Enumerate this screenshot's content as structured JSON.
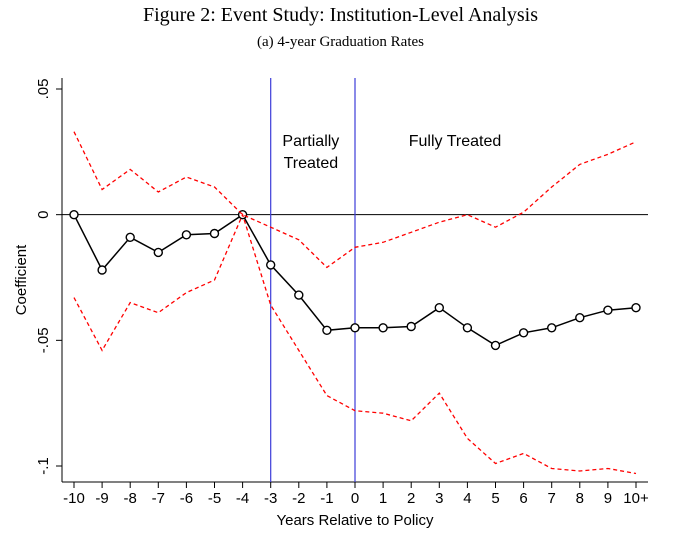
{
  "title": "Figure 2: Event Study: Institution-Level Analysis",
  "subtitle": "(a) 4-year Graduation Rates",
  "chart_data": {
    "type": "line",
    "title": "(a) 4-year Graduation Rates",
    "xlabel": "Years Relative to Policy",
    "ylabel": "Coefficient",
    "categories": [
      "-10",
      "-9",
      "-8",
      "-7",
      "-6",
      "-5",
      "-4",
      "-3",
      "-2",
      "-1",
      "0",
      "1",
      "2",
      "3",
      "4",
      "5",
      "6",
      "7",
      "8",
      "9",
      "10+"
    ],
    "ylim": [
      -0.1,
      0.05
    ],
    "yticks": [
      {
        "value": 0.05,
        "label": ".05"
      },
      {
        "value": 0,
        "label": "0"
      },
      {
        "value": -0.05,
        "label": "-.05"
      },
      {
        "value": -0.1,
        "label": "-.1"
      }
    ],
    "series": [
      {
        "style": "solid-black-hollow-circles",
        "values": [
          0.0,
          -0.022,
          -0.009,
          -0.015,
          -0.008,
          -0.0075,
          0.0,
          -0.02,
          -0.032,
          -0.046,
          -0.045,
          -0.045,
          -0.0445,
          -0.037,
          -0.045,
          -0.052,
          -0.047,
          -0.045,
          -0.041,
          -0.038,
          -0.037
        ]
      },
      {
        "style": "dashed-red",
        "values": [
          0.033,
          0.01,
          0.018,
          0.009,
          0.015,
          0.011,
          0.0,
          -0.005,
          -0.01,
          -0.021,
          -0.013,
          -0.011,
          -0.007,
          -0.003,
          0.0,
          -0.005,
          0.001,
          0.011,
          0.02,
          0.024,
          0.029
        ]
      },
      {
        "style": "dashed-red",
        "values": [
          -0.033,
          -0.054,
          -0.035,
          -0.039,
          -0.031,
          -0.026,
          0.0,
          -0.036,
          -0.054,
          -0.072,
          -0.078,
          -0.079,
          -0.082,
          -0.071,
          -0.089,
          -0.099,
          -0.095,
          -0.101,
          -0.102,
          -0.101,
          -0.103
        ]
      }
    ],
    "vlines": [
      {
        "x": "-3",
        "color": "#3c3cd8"
      },
      {
        "x": "0",
        "color": "#3c3cd8"
      }
    ],
    "hline": {
      "y": 0,
      "color": "#000000"
    },
    "annotations": [
      {
        "lines": [
          "Partially",
          "Treated"
        ]
      },
      {
        "lines": [
          "Fully Treated"
        ]
      }
    ],
    "colors": {
      "main": "#000000",
      "ci": "#ff0000",
      "vline": "#3c3cd8"
    },
    "grid": false,
    "legend": "none"
  }
}
